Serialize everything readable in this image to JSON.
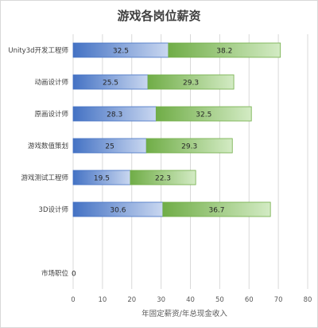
{
  "chart_data": {
    "type": "bar",
    "orientation": "horizontal",
    "stacked": true,
    "title": "游戏各岗位薪资",
    "xlabel": "年固定薪资/年总现金收入",
    "ylabel": "",
    "xlim": [
      0,
      80
    ],
    "x_ticks": [
      0,
      10,
      20,
      30,
      40,
      50,
      60,
      70,
      80
    ],
    "grid": true,
    "legend": "none",
    "categories": [
      "Unity3d开发工程师",
      "动画设计师",
      "原画设计师",
      "游戏数值策划",
      "游戏测试工程师",
      "3D设计师",
      "",
      "市场职位"
    ],
    "series": [
      {
        "values": [
          32.5,
          25.5,
          28.3,
          25,
          19.5,
          30.6,
          null,
          0
        ],
        "labels": [
          "32.5",
          "25.5",
          "28.3",
          "25",
          "19.5",
          "30.6",
          "",
          "0"
        ],
        "color": "#4472c4",
        "color_light": "#c9d7f0"
      },
      {
        "values": [
          38.2,
          29.3,
          32.5,
          29.3,
          22.3,
          36.7,
          null,
          null
        ],
        "labels": [
          "38.2",
          "29.3",
          "32.5",
          "29.3",
          "22.3",
          "36.7",
          "",
          ""
        ],
        "color": "#70ad47",
        "color_light": "#d3ebc4"
      }
    ]
  }
}
